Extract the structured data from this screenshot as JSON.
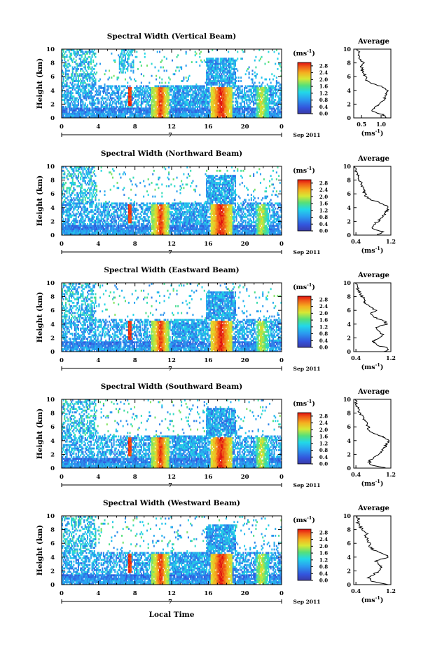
{
  "figure": {
    "xlabel": "Local Time",
    "date_label": "Sep 2011",
    "day_label": "7",
    "colorbar_unit": "(ms",
    "colorbar_unit_exp": "-1",
    "colorbar_unit_close": ")",
    "avg_title": "Average",
    "avg_unit": "(ms",
    "avg_unit_exp": "-1",
    "avg_unit_close": ")",
    "ylabel": "Height (km)"
  },
  "chart_data": [
    {
      "type": "heatmap",
      "title": "Spectral Width (Vertical Beam)",
      "xlabel": "Local Time",
      "ylabel": "Height (km)",
      "xlim": [
        0,
        24
      ],
      "ylim": [
        0,
        10
      ],
      "xticks": [
        "0",
        "4",
        "8",
        "12",
        "16",
        "20",
        "0"
      ],
      "yticks": [
        "0",
        "2",
        "4",
        "6",
        "8",
        "10"
      ],
      "colorbar": {
        "ticks": [
          "0.0",
          "0.4",
          "0.8",
          "1.2",
          "1.6",
          "2.0",
          "2.4",
          "2.8"
        ],
        "range": [
          0,
          3.0
        ]
      },
      "average": {
        "xlim": [
          0.3,
          1.25
        ],
        "xticks": [
          "0.5",
          "1.0"
        ],
        "xtick_values": [
          0.5,
          1.0
        ],
        "height": [
          0,
          0.5,
          1,
          1.5,
          2,
          2.5,
          3,
          3.5,
          4,
          4.5,
          5,
          5.5,
          6,
          6.5,
          7,
          7.5,
          8,
          8.5,
          9,
          9.5,
          10
        ],
        "values": [
          1.15,
          1.05,
          0.75,
          0.85,
          0.95,
          1.05,
          1.1,
          1.12,
          1.18,
          1.05,
          0.75,
          0.62,
          0.6,
          0.55,
          0.52,
          0.5,
          0.55,
          0.48,
          0.42,
          0.45,
          0.4
        ]
      }
    },
    {
      "type": "heatmap",
      "title": "Spectral Width (Northward Beam)",
      "xlabel": "Local Time",
      "ylabel": "Height (km)",
      "xlim": [
        0,
        24
      ],
      "ylim": [
        0,
        10
      ],
      "xticks": [
        "0",
        "4",
        "8",
        "12",
        "16",
        "20",
        "0"
      ],
      "yticks": [
        "0",
        "2",
        "4",
        "6",
        "8",
        "10"
      ],
      "colorbar": {
        "ticks": [
          "0.0",
          "0.4",
          "0.8",
          "1.2",
          "1.6",
          "2.0",
          "2.4",
          "2.8"
        ],
        "range": [
          0,
          3.0
        ]
      },
      "average": {
        "xlim": [
          0.35,
          1.2
        ],
        "xticks": [
          "0.4",
          "1.2"
        ],
        "xtick_values": [
          0.4,
          1.2
        ],
        "height": [
          0,
          0.5,
          1,
          1.5,
          2,
          2.5,
          3,
          3.5,
          4,
          4.5,
          5,
          5.5,
          6,
          6.5,
          7,
          7.5,
          8,
          8.5,
          9,
          9.5,
          10
        ],
        "values": [
          0.9,
          1.0,
          0.75,
          0.8,
          0.9,
          1.0,
          1.05,
          1.1,
          1.15,
          1.05,
          0.8,
          0.65,
          0.6,
          0.58,
          0.55,
          0.52,
          0.48,
          0.45,
          0.42,
          0.4,
          0.38
        ]
      }
    },
    {
      "type": "heatmap",
      "title": "Spectral Width (Eastward Beam)",
      "xlabel": "Local Time",
      "ylabel": "Height (km)",
      "xlim": [
        0,
        24
      ],
      "ylim": [
        0,
        10
      ],
      "xticks": [
        "0",
        "4",
        "8",
        "12",
        "16",
        "20",
        "0"
      ],
      "yticks": [
        "0",
        "2",
        "4",
        "6",
        "8",
        "10"
      ],
      "colorbar": {
        "ticks": [
          "0.0",
          "0.4",
          "0.8",
          "1.2",
          "1.6",
          "2.0",
          "2.4",
          "2.8"
        ],
        "range": [
          0,
          3.0
        ]
      },
      "average": {
        "xlim": [
          0.35,
          1.2
        ],
        "xticks": [
          "0.4",
          "1.2"
        ],
        "xtick_values": [
          0.4,
          1.2
        ],
        "height": [
          0,
          0.5,
          1,
          1.5,
          2,
          2.5,
          3,
          3.5,
          4,
          4.5,
          5,
          5.5,
          6,
          6.5,
          7,
          7.5,
          8,
          8.5,
          9,
          9.5,
          10
        ],
        "values": [
          1.05,
          1.15,
          0.85,
          0.8,
          0.95,
          1.0,
          0.95,
          0.85,
          1.1,
          1.05,
          0.8,
          0.72,
          0.85,
          0.75,
          0.6,
          0.62,
          0.55,
          0.5,
          0.45,
          0.42,
          0.4
        ]
      }
    },
    {
      "type": "heatmap",
      "title": "Spectral Width (Southward Beam)",
      "xlabel": "Local Time",
      "ylabel": "Height (km)",
      "xlim": [
        0,
        24
      ],
      "ylim": [
        0,
        10
      ],
      "xticks": [
        "0",
        "4",
        "8",
        "12",
        "16",
        "20",
        "0"
      ],
      "yticks": [
        "0",
        "2",
        "4",
        "6",
        "8",
        "10"
      ],
      "colorbar": {
        "ticks": [
          "0.0",
          "0.4",
          "0.8",
          "1.2",
          "1.6",
          "2.0",
          "2.4",
          "2.8"
        ],
        "range": [
          0,
          3.0
        ]
      },
      "average": {
        "xlim": [
          0.35,
          1.2
        ],
        "xticks": [
          "0.4",
          "1.2"
        ],
        "xtick_values": [
          0.4,
          1.2
        ],
        "height": [
          0,
          0.5,
          1,
          1.5,
          2,
          2.5,
          3,
          3.5,
          4,
          4.5,
          5,
          5.5,
          6,
          6.5,
          7,
          7.5,
          8,
          8.5,
          9,
          9.5,
          10
        ],
        "values": [
          1.1,
          0.75,
          0.7,
          0.8,
          0.9,
          1.0,
          1.05,
          1.1,
          1.15,
          1.05,
          0.82,
          0.7,
          0.68,
          0.65,
          0.6,
          0.55,
          0.5,
          0.45,
          0.42,
          0.4,
          0.38
        ]
      }
    },
    {
      "type": "heatmap",
      "title": "Spectral Width (Westward Beam)",
      "xlabel": "Local Time",
      "ylabel": "Height (km)",
      "xlim": [
        0,
        24
      ],
      "ylim": [
        0,
        10
      ],
      "xticks": [
        "0",
        "4",
        "8",
        "12",
        "16",
        "20",
        "0"
      ],
      "yticks": [
        "0",
        "2",
        "4",
        "6",
        "8",
        "10"
      ],
      "colorbar": {
        "ticks": [
          "0.0",
          "0.4",
          "0.8",
          "1.2",
          "1.6",
          "2.0",
          "2.4",
          "2.8"
        ],
        "range": [
          0,
          3.0
        ]
      },
      "average": {
        "xlim": [
          0.35,
          1.2
        ],
        "xticks": [
          "0.4",
          "1.2"
        ],
        "xtick_values": [
          0.4,
          1.2
        ],
        "height": [
          0,
          0.5,
          1,
          1.5,
          2,
          2.5,
          3,
          3.5,
          4,
          4.5,
          5,
          5.5,
          6,
          6.5,
          7,
          7.5,
          8,
          8.5,
          9,
          9.5,
          10
        ],
        "values": [
          1.15,
          0.75,
          0.7,
          0.8,
          0.95,
          1.0,
          0.9,
          0.85,
          1.15,
          1.05,
          0.8,
          0.72,
          0.7,
          0.68,
          0.62,
          0.65,
          0.55,
          0.5,
          0.45,
          0.48,
          0.4
        ]
      }
    }
  ]
}
